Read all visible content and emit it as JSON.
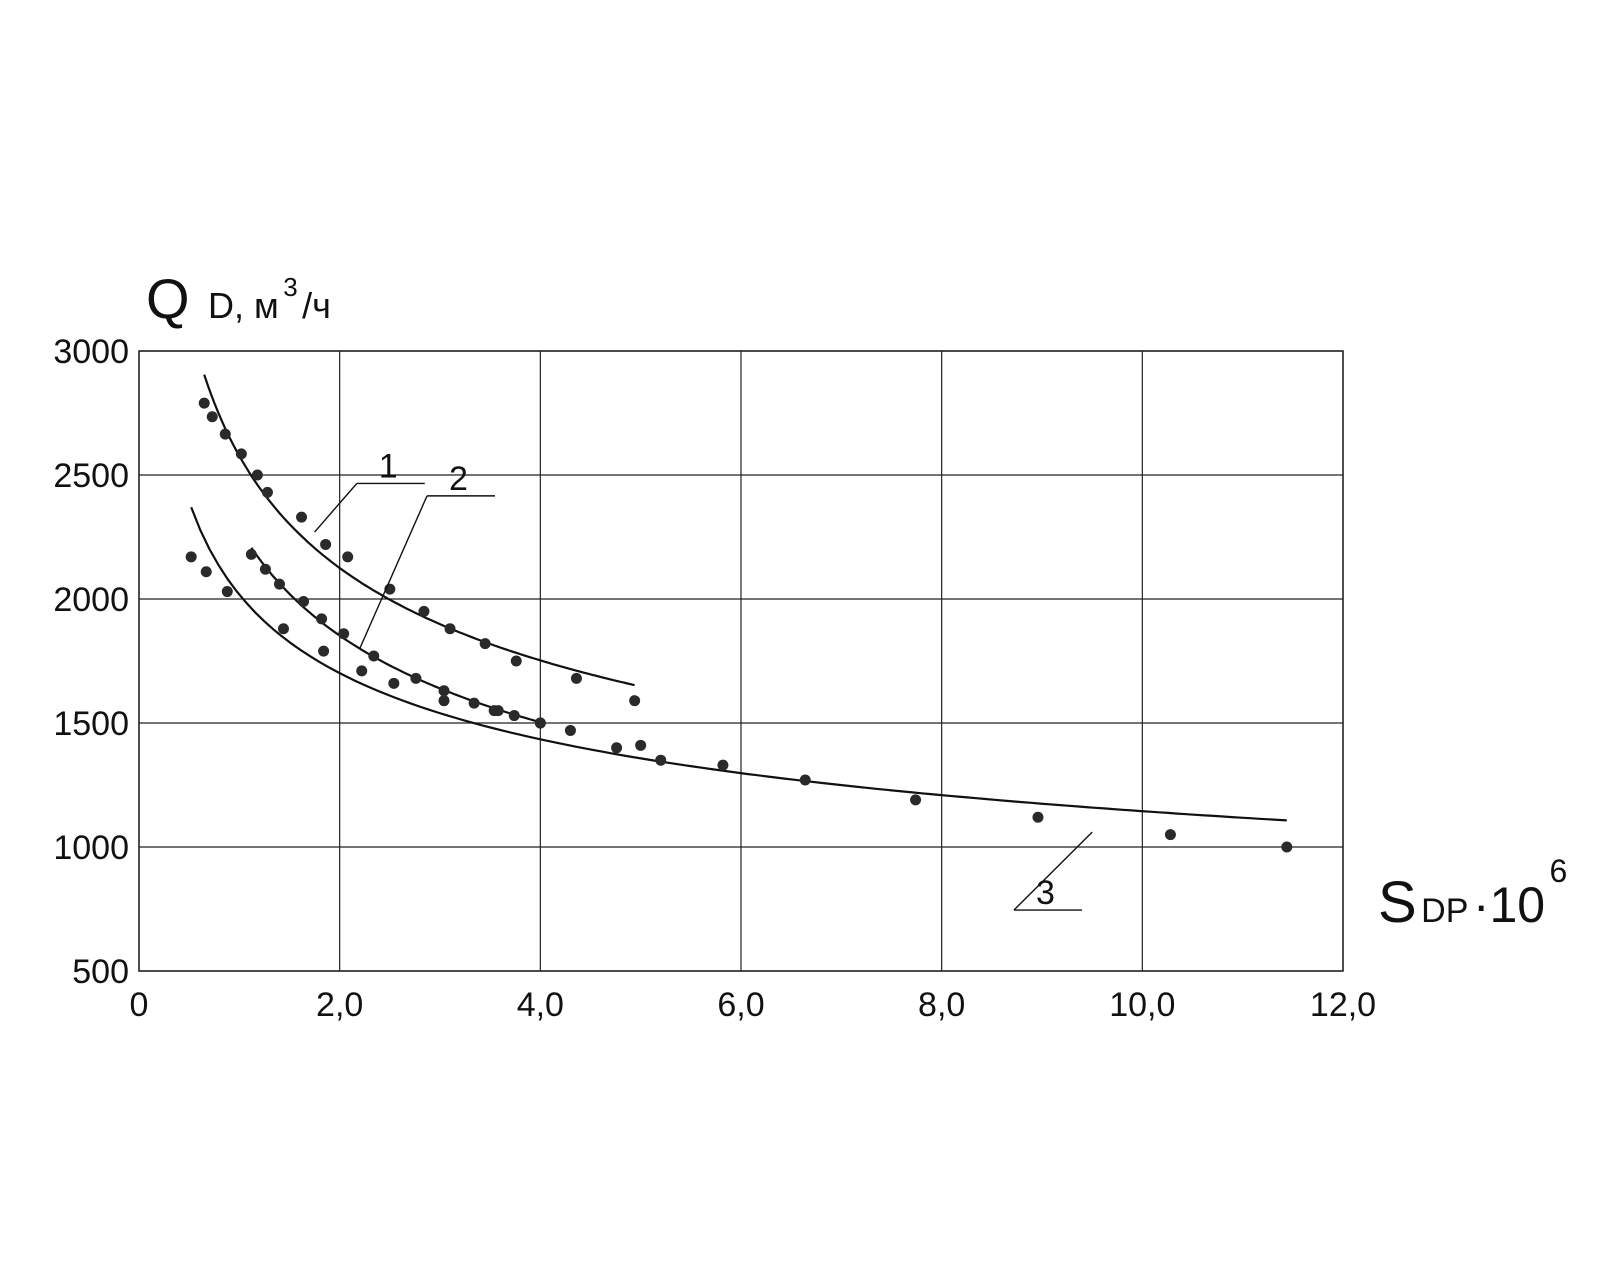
{
  "chart_data": {
    "type": "scatter",
    "ylabel": {
      "main": "Q",
      "sub": "D, м",
      "sup": "3",
      "tail": "/ч"
    },
    "xlabel": {
      "main": "S",
      "sub": "DP",
      "dot": " ·10",
      "sup": "6"
    },
    "xlim": [
      0,
      12
    ],
    "ylim": [
      500,
      3000
    ],
    "x_ticks": [
      0,
      2,
      4,
      6,
      8,
      10,
      12
    ],
    "x_tick_labels": [
      "0",
      "2,0",
      "4,0",
      "6,0",
      "8,0",
      "10,0",
      "12,0"
    ],
    "y_ticks": [
      500,
      1000,
      1500,
      2000,
      2500,
      3000
    ],
    "y_tick_labels": [
      "500",
      "1000",
      "1500",
      "2000",
      "2500",
      "3000"
    ],
    "grid": true,
    "colors": {
      "line": "#111111",
      "point": "#2a2a2a",
      "grid": "#222222"
    },
    "series": [
      {
        "name": "1",
        "callout_anchor": [
          1.75,
          2270
        ],
        "label_pos": [
          2.35,
          2490
        ],
        "x": [
          0.65,
          0.73,
          0.86,
          1.02,
          1.18,
          1.28,
          1.62,
          1.86,
          2.08,
          2.5,
          2.84,
          3.1,
          3.45,
          3.76,
          4.36,
          4.94
        ],
        "y": [
          2790,
          2735,
          2665,
          2585,
          2500,
          2430,
          2330,
          2220,
          2170,
          2040,
          1950,
          1880,
          1820,
          1750,
          1680,
          1590
        ]
      },
      {
        "name": "2",
        "callout_anchor": [
          2.2,
          1800
        ],
        "label_pos": [
          3.05,
          2440
        ],
        "x": [
          1.12,
          1.26,
          1.4,
          1.64,
          1.82,
          2.04,
          2.34,
          2.76,
          3.04,
          3.54,
          3.74,
          4.0
        ],
        "y": [
          2180,
          2120,
          2060,
          1990,
          1920,
          1860,
          1770,
          1680,
          1630,
          1550,
          1530,
          1500
        ]
      },
      {
        "name": "3",
        "callout_anchor": [
          9.5,
          1060
        ],
        "label_pos": [
          8.9,
          770
        ],
        "x": [
          0.52,
          0.67,
          0.88,
          1.44,
          1.84,
          2.22,
          2.54,
          3.04,
          3.34,
          3.58,
          4.0,
          4.3,
          4.76,
          5.0,
          5.2,
          5.82,
          6.64,
          7.74,
          8.96,
          10.28,
          11.44
        ],
        "y": [
          2170,
          2110,
          2030,
          1880,
          1790,
          1710,
          1660,
          1590,
          1580,
          1550,
          1500,
          1470,
          1400,
          1410,
          1350,
          1330,
          1270,
          1190,
          1120,
          1050,
          1000
        ]
      }
    ]
  }
}
